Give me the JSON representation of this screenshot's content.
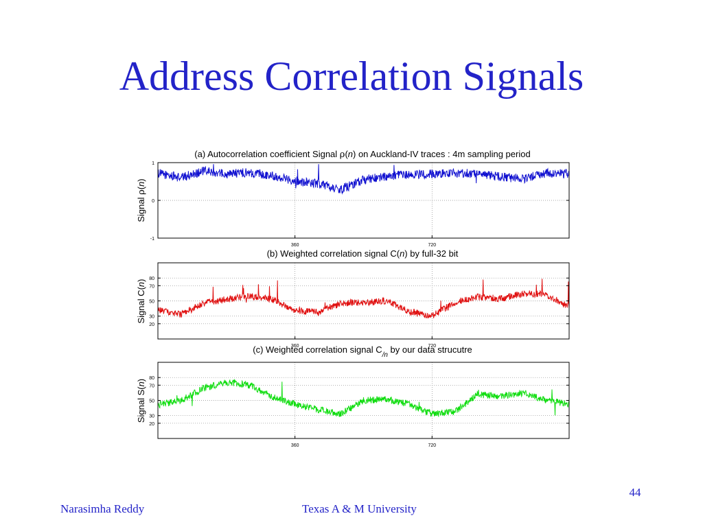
{
  "slide": {
    "title": "Address Correlation Signals",
    "page_number": "44",
    "footer_left": "Narasimha Reddy",
    "footer_center": "Texas A & M University"
  },
  "chart_data": [
    {
      "type": "line",
      "title_parts": [
        "(a) Autocorrelation coefficient Signal ",
        "ρ",
        "(",
        "n",
        ") on Auckland-IV traces : 4m sampling period"
      ],
      "ylabel_parts": [
        "Signal ",
        "ρ",
        "(",
        "n",
        ")"
      ],
      "color": "#1010d0",
      "xlim": [
        0,
        720
      ],
      "x_ticks": [
        360,
        720
      ],
      "ylim": [
        -1,
        1
      ],
      "y_ticks": [
        -1,
        0,
        1
      ],
      "grid": "dotted",
      "samples": 1080,
      "series": [
        {
          "x_step": 60,
          "values": [
            0.72,
            0.6,
            0.78,
            0.7,
            0.74,
            0.66,
            0.52,
            0.45,
            0.28,
            0.55,
            0.63,
            0.68,
            0.7,
            0.72,
            0.71,
            0.62,
            0.57,
            0.72,
            0.7
          ]
        }
      ]
    },
    {
      "type": "line",
      "title_parts": [
        "(b) Weighted correlation signal C(",
        "n",
        ") by full-32 bit"
      ],
      "ylabel_parts": [
        "Signal C(",
        "n",
        ")"
      ],
      "color": "#e01010",
      "xlim": [
        0,
        720
      ],
      "x_ticks": [
        360,
        720
      ],
      "ylim": [
        0,
        100
      ],
      "y_ticks": [
        20,
        30,
        50,
        70,
        80
      ],
      "grid": "dotted",
      "samples": 1080,
      "series": [
        {
          "x_step": 60,
          "values": [
            38,
            32,
            47,
            52,
            56,
            52,
            38,
            35,
            47,
            48,
            50,
            36,
            30,
            48,
            55,
            53,
            60,
            58,
            42
          ]
        }
      ]
    },
    {
      "type": "line",
      "title_parts": [
        "(c) Weighted correlation signal C",
        "/n",
        " by our data strucutre"
      ],
      "ylabel_parts": [
        "Signal S(",
        "n",
        ")"
      ],
      "color": "#10dd10",
      "xlim": [
        0,
        720
      ],
      "x_ticks": [
        360,
        720
      ],
      "ylim": [
        0,
        100
      ],
      "y_ticks": [
        20,
        30,
        50,
        70,
        80
      ],
      "grid": "dotted",
      "samples": 1080,
      "series": [
        {
          "x_step": 60,
          "values": [
            44,
            50,
            66,
            74,
            70,
            55,
            45,
            38,
            32,
            50,
            52,
            45,
            32,
            35,
            58,
            55,
            60,
            50,
            45
          ]
        }
      ]
    }
  ]
}
